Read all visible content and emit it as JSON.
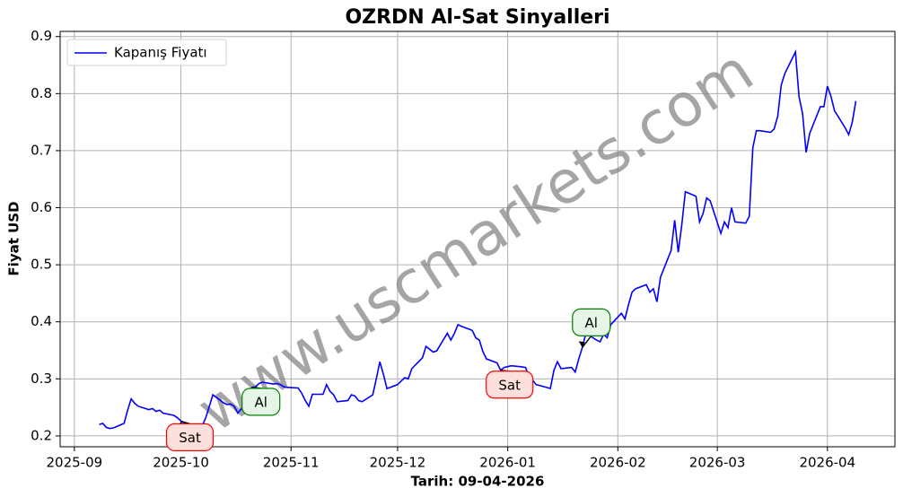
{
  "chart_data": {
    "type": "line",
    "title": "OZRDN Al-Sat Sinyalleri",
    "xlabel": "Tarih: 09-04-2026",
    "ylabel": "Fiyat USD",
    "watermark": "www.uscmarkets.com",
    "legend": "upper left",
    "grid": true,
    "xlim": [
      "2025-08-28",
      "2026-04-20"
    ],
    "xticks": [
      "2025-09",
      "2025-10",
      "2025-11",
      "2025-12",
      "2026-01",
      "2026-02",
      "2026-03",
      "2026-04"
    ],
    "ylim": [
      0.181,
      0.909
    ],
    "yticks": [
      0.2,
      0.3,
      0.4,
      0.5,
      0.6,
      0.7,
      0.8,
      0.9
    ],
    "x": [
      "2025-09-08",
      "2025-09-09",
      "2025-09-10",
      "2025-09-11",
      "2025-09-12",
      "2025-09-15",
      "2025-09-16",
      "2025-09-17",
      "2025-09-18",
      "2025-09-19",
      "2025-09-22",
      "2025-09-23",
      "2025-09-24",
      "2025-09-25",
      "2025-09-26",
      "2025-09-29",
      "2025-09-30",
      "2025-10-01",
      "2025-10-02",
      "2025-10-03",
      "2025-10-06",
      "2025-10-07",
      "2025-10-08",
      "2025-10-09",
      "2025-10-10",
      "2025-10-13",
      "2025-10-14",
      "2025-10-15",
      "2025-10-16",
      "2025-10-17",
      "2025-10-20",
      "2025-10-21",
      "2025-10-22",
      "2025-10-23",
      "2025-10-24",
      "2025-10-27",
      "2025-10-28",
      "2025-10-29",
      "2025-10-30",
      "2025-10-31",
      "2025-11-03",
      "2025-11-04",
      "2025-11-05",
      "2025-11-06",
      "2025-11-07",
      "2025-11-10",
      "2025-11-11",
      "2025-11-12",
      "2025-11-13",
      "2025-11-14",
      "2025-11-17",
      "2025-11-18",
      "2025-11-19",
      "2025-11-20",
      "2025-11-21",
      "2025-11-24",
      "2025-11-25",
      "2025-11-26",
      "2025-11-27",
      "2025-11-28",
      "2025-12-01",
      "2025-12-02",
      "2025-12-03",
      "2025-12-04",
      "2025-12-05",
      "2025-12-08",
      "2025-12-09",
      "2025-12-10",
      "2025-12-11",
      "2025-12-12",
      "2025-12-15",
      "2025-12-16",
      "2025-12-17",
      "2025-12-18",
      "2025-12-19",
      "2025-12-22",
      "2025-12-23",
      "2025-12-24",
      "2025-12-25",
      "2025-12-26",
      "2025-12-29",
      "2025-12-30",
      "2025-12-31",
      "2026-01-02",
      "2026-01-05",
      "2026-01-06",
      "2026-01-07",
      "2026-01-08",
      "2026-01-09",
      "2026-01-12",
      "2026-01-13",
      "2026-01-14",
      "2026-01-15",
      "2026-01-16",
      "2026-01-19",
      "2026-01-20",
      "2026-01-21",
      "2026-01-22",
      "2026-01-23",
      "2026-01-26",
      "2026-01-27",
      "2026-01-28",
      "2026-01-29",
      "2026-01-30",
      "2026-02-02",
      "2026-02-03",
      "2026-02-04",
      "2026-02-05",
      "2026-02-06",
      "2026-02-09",
      "2026-02-10",
      "2026-02-11",
      "2026-02-12",
      "2026-02-13",
      "2026-02-16",
      "2026-02-17",
      "2026-02-18",
      "2026-02-19",
      "2026-02-20",
      "2026-02-23",
      "2026-02-24",
      "2026-02-25",
      "2026-02-26",
      "2026-02-27",
      "2026-03-02",
      "2026-03-03",
      "2026-03-04",
      "2026-03-05",
      "2026-03-06",
      "2026-03-09",
      "2026-03-10",
      "2026-03-11",
      "2026-03-12",
      "2026-03-13",
      "2026-03-16",
      "2026-03-17",
      "2026-03-18",
      "2026-03-19",
      "2026-03-20",
      "2026-03-23",
      "2026-03-24",
      "2026-03-25",
      "2026-03-26",
      "2026-03-27",
      "2026-03-30",
      "2026-03-31",
      "2026-04-01",
      "2026-04-02",
      "2026-04-03",
      "2026-04-06",
      "2026-04-07",
      "2026-04-08",
      "2026-04-09"
    ],
    "series": [
      {
        "name": "Kapanış Fiyatı",
        "color": "#0000ff",
        "values": [
          0.22,
          0.222,
          0.215,
          0.213,
          0.214,
          0.222,
          0.245,
          0.265,
          0.257,
          0.252,
          0.246,
          0.248,
          0.243,
          0.245,
          0.24,
          0.236,
          0.232,
          0.226,
          0.222,
          0.22,
          0.215,
          0.218,
          0.232,
          0.252,
          0.272,
          0.258,
          0.255,
          0.256,
          0.252,
          0.24,
          0.262,
          0.285,
          0.286,
          0.292,
          0.294,
          0.291,
          0.292,
          0.29,
          0.286,
          0.285,
          0.284,
          0.275,
          0.262,
          0.252,
          0.273,
          0.273,
          0.29,
          0.278,
          0.272,
          0.26,
          0.262,
          0.272,
          0.27,
          0.262,
          0.26,
          0.272,
          0.3,
          0.33,
          0.308,
          0.283,
          0.29,
          0.296,
          0.302,
          0.3,
          0.318,
          0.337,
          0.357,
          0.352,
          0.347,
          0.349,
          0.38,
          0.368,
          0.38,
          0.395,
          0.392,
          0.385,
          0.372,
          0.368,
          0.348,
          0.335,
          0.328,
          0.315,
          0.32,
          0.323,
          0.321,
          0.32,
          0.305,
          0.298,
          0.29,
          0.285,
          0.283,
          0.315,
          0.33,
          0.318,
          0.32,
          0.312,
          0.335,
          0.355,
          0.38,
          0.368,
          0.365,
          0.378,
          0.372,
          0.395,
          0.415,
          0.405,
          0.43,
          0.452,
          0.458,
          0.465,
          0.452,
          0.458,
          0.435,
          0.478,
          0.525,
          0.578,
          0.522,
          0.57,
          0.628,
          0.62,
          0.575,
          0.59,
          0.617,
          0.612,
          0.555,
          0.575,
          0.565,
          0.6,
          0.575,
          0.573,
          0.585,
          0.705,
          0.735,
          0.735,
          0.732,
          0.738,
          0.76,
          0.815,
          0.835,
          0.873,
          0.795,
          0.765,
          0.697,
          0.73,
          0.777,
          0.777,
          0.813,
          0.795,
          0.77,
          0.74,
          0.728,
          0.75,
          0.787
        ]
      }
    ],
    "annotations": [
      {
        "text": "Sat",
        "x": "2025-10-01",
        "y": 0.226,
        "color": "#ff0000",
        "fill": "#fde0dc"
      },
      {
        "text": "Al",
        "x": "2025-10-21",
        "y": 0.285,
        "color": "#008000",
        "fill": "#e6f5e6"
      },
      {
        "text": "Sat",
        "x": "2025-12-30",
        "y": 0.315,
        "color": "#ff0000",
        "fill": "#fde0dc"
      },
      {
        "text": "Al",
        "x": "2026-01-22",
        "y": 0.355,
        "color": "#008000",
        "fill": "#e6f5e6"
      }
    ]
  }
}
